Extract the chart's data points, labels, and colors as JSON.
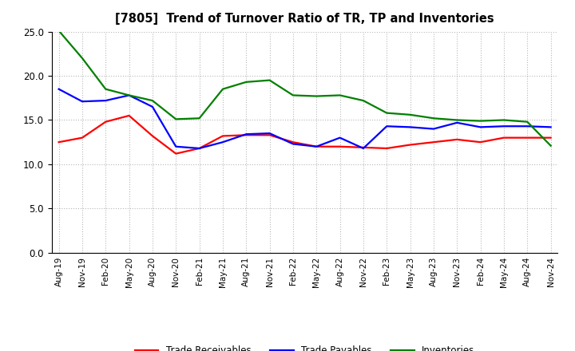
{
  "title": "[7805]  Trend of Turnover Ratio of TR, TP and Inventories",
  "x_labels": [
    "Aug-19",
    "Nov-19",
    "Feb-20",
    "May-20",
    "Aug-20",
    "Nov-20",
    "Feb-21",
    "May-21",
    "Aug-21",
    "Nov-21",
    "Feb-22",
    "May-22",
    "Aug-22",
    "Nov-22",
    "Feb-23",
    "May-23",
    "Aug-23",
    "Nov-23",
    "Feb-24",
    "May-24",
    "Aug-24",
    "Nov-24"
  ],
  "trade_receivables": [
    12.5,
    13.0,
    14.8,
    15.5,
    13.2,
    11.2,
    11.8,
    13.2,
    13.3,
    13.3,
    12.5,
    12.0,
    12.0,
    11.9,
    11.8,
    12.2,
    12.5,
    12.8,
    12.5,
    13.0,
    13.0,
    13.0
  ],
  "trade_payables": [
    18.5,
    17.1,
    17.2,
    17.8,
    16.5,
    12.0,
    11.8,
    12.5,
    13.4,
    13.5,
    12.3,
    12.0,
    13.0,
    11.8,
    14.3,
    14.2,
    14.0,
    14.7,
    14.2,
    14.3,
    14.3,
    14.2
  ],
  "inventories": [
    25.1,
    22.0,
    18.5,
    17.8,
    17.2,
    15.1,
    15.2,
    18.5,
    19.3,
    19.5,
    17.8,
    17.7,
    17.8,
    17.2,
    15.8,
    15.6,
    15.2,
    15.0,
    14.9,
    15.0,
    14.8,
    12.1
  ],
  "ylim": [
    0,
    25.0
  ],
  "yticks": [
    0.0,
    5.0,
    10.0,
    15.0,
    20.0,
    25.0
  ],
  "color_tr": "#ff0000",
  "color_tp": "#0000ff",
  "color_inv": "#008000",
  "linewidth": 1.6,
  "legend_labels": [
    "Trade Receivables",
    "Trade Payables",
    "Inventories"
  ],
  "background_color": "#ffffff",
  "grid_color": "#999999"
}
